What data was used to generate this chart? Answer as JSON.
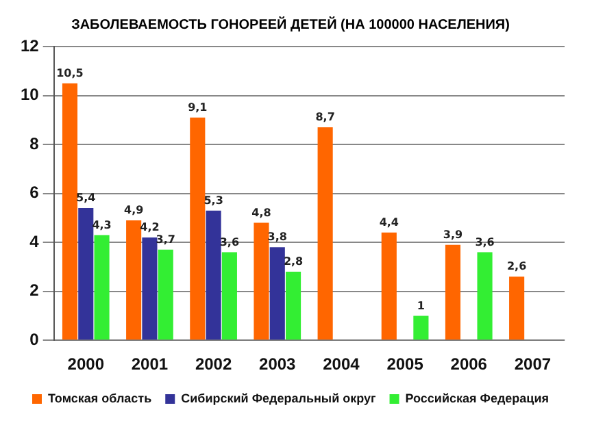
{
  "chart_data": {
    "type": "bar",
    "title": "ЗАБОЛЕВАЕМОСТЬ ГОНОРЕЕЙ ДЕТЕЙ (НА 100000 НАСЕЛЕНИЯ)",
    "categories": [
      "2000",
      "2001",
      "2002",
      "2003",
      "2004",
      "2005",
      "2006",
      "2007"
    ],
    "series": [
      {
        "name": "Томская область",
        "color": "#ff6600",
        "values": [
          10.5,
          4.9,
          9.1,
          4.8,
          8.7,
          4.4,
          3.9,
          2.6
        ],
        "value_labels": [
          "10,5",
          "4,9",
          "9,1",
          "4,8",
          "8,7",
          "4,4",
          "3,9",
          "2,6"
        ]
      },
      {
        "name": "Сибирский Федеральный округ",
        "color": "#333399",
        "values": [
          5.4,
          4.2,
          5.3,
          3.8,
          null,
          null,
          null,
          null
        ],
        "value_labels": [
          "5,4",
          "4,2",
          "5,3",
          "3,8",
          null,
          null,
          null,
          null
        ]
      },
      {
        "name": "Российская Федерация",
        "color": "#33ee33",
        "values": [
          4.3,
          3.7,
          3.6,
          2.8,
          null,
          1,
          3.6,
          null
        ],
        "value_labels": [
          "4,3",
          "3,7",
          "3,6",
          "2,8",
          null,
          "1",
          "3,6",
          null
        ]
      }
    ],
    "ylim": [
      0,
      12
    ],
    "yticks": [
      0,
      2,
      4,
      6,
      8,
      10,
      12
    ],
    "grid": "y",
    "legend": "bottom"
  }
}
